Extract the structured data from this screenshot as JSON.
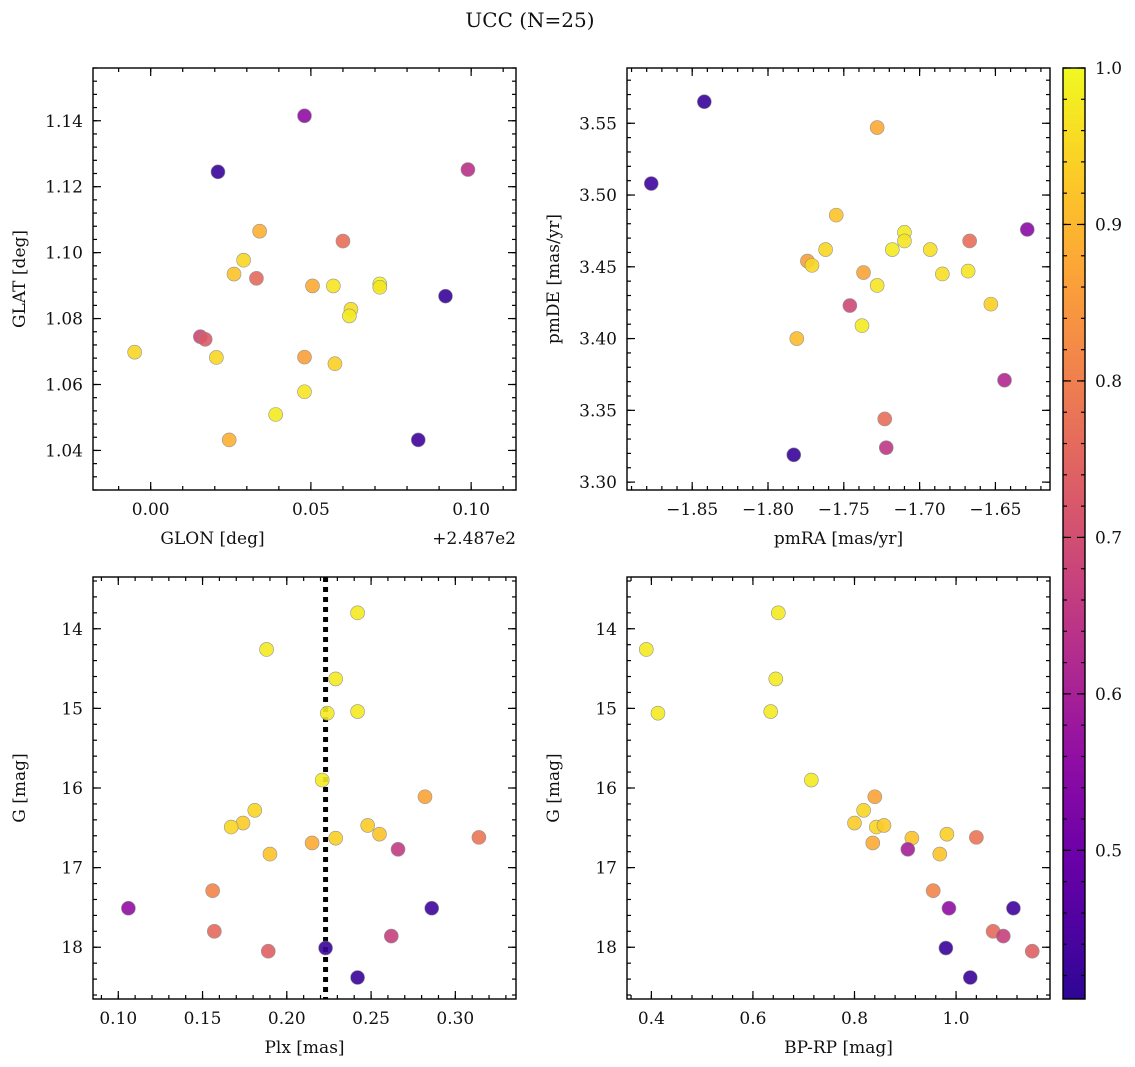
{
  "title": "UCC (N=25)",
  "colorbar": {
    "colormap": "plasma",
    "range": [
      0.405,
      1.0
    ],
    "ticks": [
      0.5,
      0.6,
      0.7,
      0.8,
      0.9,
      1.0
    ],
    "tick_labels": [
      "0.5",
      "0.6",
      "0.7",
      "0.8",
      "0.9",
      "1.0"
    ]
  },
  "chart_data": [
    {
      "type": "scatter",
      "xlabel": "GLON [deg]",
      "ylabel": "GLAT [deg]",
      "offset_label": "+2.487e2",
      "xlim": [
        -0.018,
        0.114
      ],
      "ylim": [
        1.028,
        1.156
      ],
      "xticks": [
        0.0,
        0.05,
        0.1
      ],
      "xtick_labels": [
        "0.00",
        "0.05",
        "0.10"
      ],
      "yticks": [
        1.04,
        1.06,
        1.08,
        1.1,
        1.12,
        1.14
      ],
      "ytick_labels": [
        "1.04",
        "1.06",
        "1.08",
        "1.10",
        "1.12",
        "1.14"
      ],
      "points": [
        {
          "x": 0.021,
          "y": 1.1245,
          "c": 0.42
        },
        {
          "x": 0.048,
          "y": 1.1415,
          "c": 0.56
        },
        {
          "x": 0.099,
          "y": 1.1252,
          "c": 0.64
        },
        {
          "x": 0.034,
          "y": 1.1065,
          "c": 0.89
        },
        {
          "x": 0.06,
          "y": 1.1035,
          "c": 0.77
        },
        {
          "x": 0.029,
          "y": 1.0977,
          "c": 0.95
        },
        {
          "x": 0.026,
          "y": 1.0935,
          "c": 0.92
        },
        {
          "x": 0.033,
          "y": 1.0922,
          "c": 0.76
        },
        {
          "x": 0.0505,
          "y": 1.0899,
          "c": 0.88
        },
        {
          "x": 0.057,
          "y": 1.0899,
          "c": 0.97
        },
        {
          "x": 0.0715,
          "y": 1.0905,
          "c": 1.0
        },
        {
          "x": 0.0715,
          "y": 1.0895,
          "c": 0.97
        },
        {
          "x": 0.092,
          "y": 1.0868,
          "c": 0.42
        },
        {
          "x": 0.0625,
          "y": 1.0828,
          "c": 0.96
        },
        {
          "x": 0.062,
          "y": 1.0808,
          "c": 0.98
        },
        {
          "x": 0.0155,
          "y": 1.0745,
          "c": 0.68
        },
        {
          "x": 0.017,
          "y": 1.0737,
          "c": 0.73
        },
        {
          "x": -0.005,
          "y": 1.0698,
          "c": 0.95
        },
        {
          "x": 0.0205,
          "y": 1.0682,
          "c": 0.95
        },
        {
          "x": 0.048,
          "y": 1.0683,
          "c": 0.86
        },
        {
          "x": 0.0575,
          "y": 1.0663,
          "c": 0.94
        },
        {
          "x": 0.048,
          "y": 1.0578,
          "c": 0.97
        },
        {
          "x": 0.039,
          "y": 1.0509,
          "c": 0.98
        },
        {
          "x": 0.0245,
          "y": 1.0432,
          "c": 0.89
        },
        {
          "x": 0.0835,
          "y": 1.0432,
          "c": 0.43
        }
      ]
    },
    {
      "type": "scatter",
      "xlabel": "pmRA [mas/yr]",
      "ylabel": "pmDE [mas/yr]",
      "xlim": [
        -1.893,
        -1.614
      ],
      "ylim": [
        3.2945,
        3.5885
      ],
      "xticks": [
        -1.85,
        -1.8,
        -1.75,
        -1.7,
        -1.65
      ],
      "xtick_labels": [
        "−1.85",
        "−1.80",
        "−1.75",
        "−1.70",
        "−1.65"
      ],
      "yticks": [
        3.3,
        3.35,
        3.4,
        3.45,
        3.5,
        3.55
      ],
      "ytick_labels": [
        "3.30",
        "3.35",
        "3.40",
        "3.45",
        "3.50",
        "3.55"
      ],
      "points": [
        {
          "x": -1.842,
          "y": 3.565,
          "c": 0.42
        },
        {
          "x": -1.877,
          "y": 3.508,
          "c": 0.43
        },
        {
          "x": -1.728,
          "y": 3.547,
          "c": 0.88
        },
        {
          "x": -1.755,
          "y": 3.486,
          "c": 0.92
        },
        {
          "x": -1.629,
          "y": 3.476,
          "c": 0.55
        },
        {
          "x": -1.71,
          "y": 3.474,
          "c": 0.98
        },
        {
          "x": -1.71,
          "y": 3.468,
          "c": 0.97
        },
        {
          "x": -1.667,
          "y": 3.468,
          "c": 0.77
        },
        {
          "x": -1.762,
          "y": 3.462,
          "c": 0.95
        },
        {
          "x": -1.718,
          "y": 3.462,
          "c": 0.98
        },
        {
          "x": -1.693,
          "y": 3.462,
          "c": 0.96
        },
        {
          "x": -1.774,
          "y": 3.454,
          "c": 0.86
        },
        {
          "x": -1.771,
          "y": 3.451,
          "c": 0.95
        },
        {
          "x": -1.737,
          "y": 3.446,
          "c": 0.87
        },
        {
          "x": -1.668,
          "y": 3.447,
          "c": 0.97
        },
        {
          "x": -1.685,
          "y": 3.445,
          "c": 0.96
        },
        {
          "x": -1.728,
          "y": 3.437,
          "c": 0.97
        },
        {
          "x": -1.653,
          "y": 3.424,
          "c": 0.94
        },
        {
          "x": -1.746,
          "y": 3.423,
          "c": 0.69
        },
        {
          "x": -1.738,
          "y": 3.409,
          "c": 0.98
        },
        {
          "x": -1.781,
          "y": 3.4,
          "c": 0.91
        },
        {
          "x": -1.644,
          "y": 3.371,
          "c": 0.62
        },
        {
          "x": -1.723,
          "y": 3.344,
          "c": 0.77
        },
        {
          "x": -1.722,
          "y": 3.324,
          "c": 0.65
        },
        {
          "x": -1.783,
          "y": 3.319,
          "c": 0.42
        }
      ]
    },
    {
      "type": "scatter",
      "xlabel": "Plx [mas]",
      "ylabel": "G [mag]",
      "xlim": [
        0.085,
        0.336
      ],
      "ylim": [
        18.65,
        13.35
      ],
      "y_inverted": true,
      "xticks": [
        0.1,
        0.15,
        0.2,
        0.25,
        0.3
      ],
      "xtick_labels": [
        "0.10",
        "0.15",
        "0.20",
        "0.25",
        "0.30"
      ],
      "yticks": [
        14,
        15,
        16,
        17,
        18
      ],
      "ytick_labels": [
        "14",
        "15",
        "16",
        "17",
        "18"
      ],
      "vline": {
        "x": 0.223,
        "style": "dotted"
      },
      "points": [
        {
          "x": 0.242,
          "y": 13.8,
          "c": 0.98
        },
        {
          "x": 0.188,
          "y": 14.26,
          "c": 0.98
        },
        {
          "x": 0.229,
          "y": 14.63,
          "c": 0.98
        },
        {
          "x": 0.224,
          "y": 15.06,
          "c": 0.98
        },
        {
          "x": 0.242,
          "y": 15.04,
          "c": 0.98
        },
        {
          "x": 0.221,
          "y": 15.9,
          "c": 0.98
        },
        {
          "x": 0.282,
          "y": 16.11,
          "c": 0.87
        },
        {
          "x": 0.181,
          "y": 16.28,
          "c": 0.95
        },
        {
          "x": 0.174,
          "y": 16.44,
          "c": 0.93
        },
        {
          "x": 0.167,
          "y": 16.49,
          "c": 0.95
        },
        {
          "x": 0.248,
          "y": 16.47,
          "c": 0.93
        },
        {
          "x": 0.255,
          "y": 16.58,
          "c": 0.92
        },
        {
          "x": 0.229,
          "y": 16.63,
          "c": 0.94
        },
        {
          "x": 0.314,
          "y": 16.62,
          "c": 0.78
        },
        {
          "x": 0.215,
          "y": 16.69,
          "c": 0.88
        },
        {
          "x": 0.266,
          "y": 16.77,
          "c": 0.66
        },
        {
          "x": 0.19,
          "y": 16.83,
          "c": 0.92
        },
        {
          "x": 0.156,
          "y": 17.29,
          "c": 0.81
        },
        {
          "x": 0.106,
          "y": 17.51,
          "c": 0.56
        },
        {
          "x": 0.286,
          "y": 17.51,
          "c": 0.43
        },
        {
          "x": 0.157,
          "y": 17.8,
          "c": 0.76
        },
        {
          "x": 0.262,
          "y": 17.86,
          "c": 0.67
        },
        {
          "x": 0.223,
          "y": 18.01,
          "c": 0.42
        },
        {
          "x": 0.189,
          "y": 18.05,
          "c": 0.74
        },
        {
          "x": 0.242,
          "y": 18.38,
          "c": 0.42
        }
      ]
    },
    {
      "type": "scatter",
      "xlabel": "BP-RP [mag]",
      "ylabel": "G [mag]",
      "xlim": [
        0.352,
        1.185
      ],
      "ylim": [
        18.65,
        13.35
      ],
      "y_inverted": true,
      "xticks": [
        0.4,
        0.6,
        0.8,
        1.0
      ],
      "xtick_labels": [
        "0.4",
        "0.6",
        "0.8",
        "1.0"
      ],
      "yticks": [
        14,
        15,
        16,
        17,
        18
      ],
      "ytick_labels": [
        "14",
        "15",
        "16",
        "17",
        "18"
      ],
      "points": [
        {
          "x": 0.65,
          "y": 13.8,
          "c": 0.98
        },
        {
          "x": 0.39,
          "y": 14.26,
          "c": 0.98
        },
        {
          "x": 0.645,
          "y": 14.63,
          "c": 0.98
        },
        {
          "x": 0.413,
          "y": 15.06,
          "c": 0.98
        },
        {
          "x": 0.635,
          "y": 15.04,
          "c": 0.98
        },
        {
          "x": 0.715,
          "y": 15.9,
          "c": 0.98
        },
        {
          "x": 0.84,
          "y": 16.11,
          "c": 0.87
        },
        {
          "x": 0.818,
          "y": 16.28,
          "c": 0.95
        },
        {
          "x": 0.8,
          "y": 16.44,
          "c": 0.93
        },
        {
          "x": 0.843,
          "y": 16.49,
          "c": 0.95
        },
        {
          "x": 0.858,
          "y": 16.47,
          "c": 0.93
        },
        {
          "x": 0.913,
          "y": 16.63,
          "c": 0.92
        },
        {
          "x": 0.982,
          "y": 16.58,
          "c": 0.94
        },
        {
          "x": 1.04,
          "y": 16.62,
          "c": 0.78
        },
        {
          "x": 0.836,
          "y": 16.69,
          "c": 0.88
        },
        {
          "x": 0.905,
          "y": 16.77,
          "c": 0.6
        },
        {
          "x": 0.968,
          "y": 16.83,
          "c": 0.92
        },
        {
          "x": 0.955,
          "y": 17.29,
          "c": 0.81
        },
        {
          "x": 0.986,
          "y": 17.51,
          "c": 0.56
        },
        {
          "x": 1.113,
          "y": 17.51,
          "c": 0.43
        },
        {
          "x": 1.073,
          "y": 17.8,
          "c": 0.76
        },
        {
          "x": 1.093,
          "y": 17.86,
          "c": 0.67
        },
        {
          "x": 0.98,
          "y": 18.01,
          "c": 0.42
        },
        {
          "x": 1.15,
          "y": 18.05,
          "c": 0.74
        },
        {
          "x": 1.028,
          "y": 18.38,
          "c": 0.42
        }
      ]
    }
  ]
}
